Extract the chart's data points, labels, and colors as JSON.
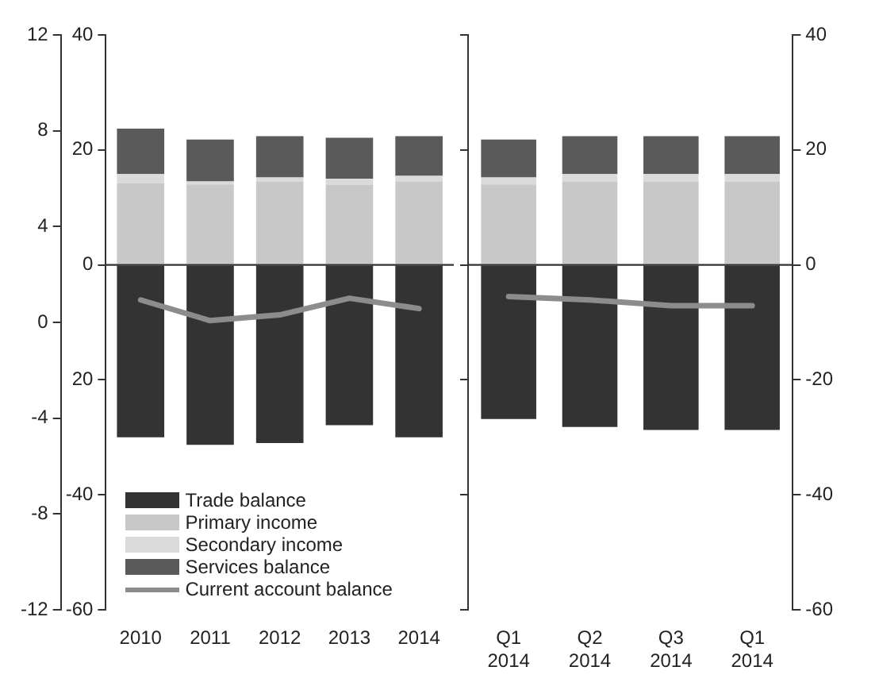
{
  "chart_data": [
    {
      "type": "bar",
      "stacked": true,
      "categories": [
        "2010",
        "2011",
        "2012",
        "2013",
        "2014"
      ],
      "series": [
        {
          "name": "Trade balance",
          "color": "#333333",
          "values": [
            -30,
            -31.3,
            -31,
            -27.9,
            -30
          ]
        },
        {
          "name": "Primary income",
          "color": "#c8c8c8",
          "values": [
            14.2,
            14,
            14.5,
            13.9,
            14.5
          ]
        },
        {
          "name": "Secondary income",
          "color": "#dadada",
          "values": [
            1.6,
            0.5,
            0.7,
            1.1,
            1
          ]
        },
        {
          "name": "Services balance",
          "color": "#5a5a5a",
          "values": [
            7.9,
            7.3,
            7.2,
            7.1,
            6.9
          ]
        },
        {
          "name": "Current account balance",
          "type": "line",
          "color": "#8c8c8c",
          "values": [
            -6.1,
            -9.7,
            -8.7,
            -5.8,
            -7.6
          ]
        }
      ],
      "ylim": [
        -60,
        40
      ],
      "yticks": [
        40,
        20,
        0,
        {
          "value": -20,
          "label": "20"
        },
        -40,
        -60
      ],
      "y3lim": [
        -12,
        12
      ],
      "y3ticks": [
        12,
        8,
        4,
        0,
        -4,
        -8,
        -12
      ],
      "ref_lines": [
        {
          "axis": "y",
          "value": 0,
          "color": "#333333"
        }
      ],
      "grid": false,
      "legend": "bottom left",
      "marker": "none",
      "line_style": "solid"
    },
    {
      "type": "bar",
      "stacked": true,
      "categories": [
        "Q1 2014",
        "Q2 2014",
        "Q3 2014",
        "Q1 2014"
      ],
      "series": [
        {
          "color": "#333333",
          "axis": "y2",
          "values": [
            -26.8,
            -28.2,
            -28.7,
            -28.7
          ]
        },
        {
          "color": "#c8c8c8",
          "axis": "y2",
          "values": [
            14,
            14.5,
            14.5,
            14.5
          ]
        },
        {
          "color": "#dadada",
          "axis": "y2",
          "values": [
            1.2,
            1.3,
            1.3,
            1.3
          ]
        },
        {
          "color": "#5a5a5a",
          "axis": "y2",
          "values": [
            6.6,
            6.6,
            6.6,
            6.6
          ]
        },
        {
          "type": "line",
          "color": "#8c8c8c",
          "axis": "y2",
          "values": [
            -5.5,
            -6.1,
            -7.1,
            -7.1
          ]
        }
      ],
      "y2lim": [
        -60,
        40
      ],
      "y2ticks": [
        40,
        20,
        0,
        -20,
        -40,
        -60
      ],
      "ref_lines": [
        {
          "axis": "y2",
          "value": 0,
          "color": "#333333"
        }
      ],
      "grid": false,
      "marker": "none",
      "line_style": "solid"
    }
  ]
}
